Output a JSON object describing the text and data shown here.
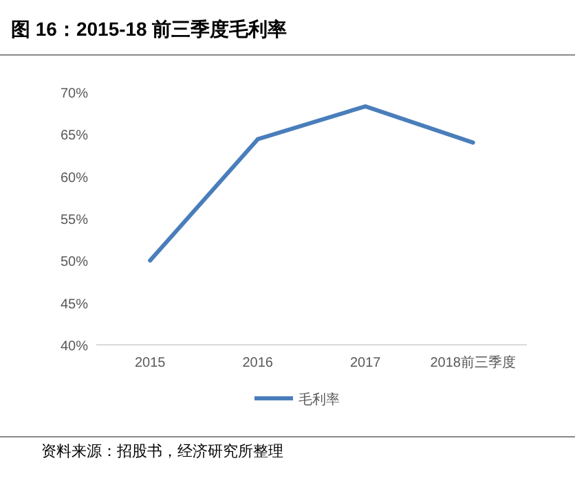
{
  "chart_data": {
    "type": "line",
    "title": "图 16：2015-18 前三季度毛利率",
    "categories": [
      "2015",
      "2016",
      "2017",
      "2018前三季度"
    ],
    "series": [
      {
        "name": "毛利率",
        "color": "#4a7ebb",
        "values": [
          50.0,
          64.4,
          68.3,
          64.0
        ]
      }
    ],
    "ylim": [
      40,
      70
    ],
    "yticks": [
      {
        "value": 40,
        "label": "40%"
      },
      {
        "value": 45,
        "label": "45%"
      },
      {
        "value": 50,
        "label": "50%"
      },
      {
        "value": 55,
        "label": "55%"
      },
      {
        "value": 60,
        "label": "60%"
      },
      {
        "value": 65,
        "label": "65%"
      },
      {
        "value": 70,
        "label": "70%"
      }
    ],
    "legend": "bottom",
    "annotations": [
      "资料来源：招股书，经济研究所整理"
    ]
  }
}
